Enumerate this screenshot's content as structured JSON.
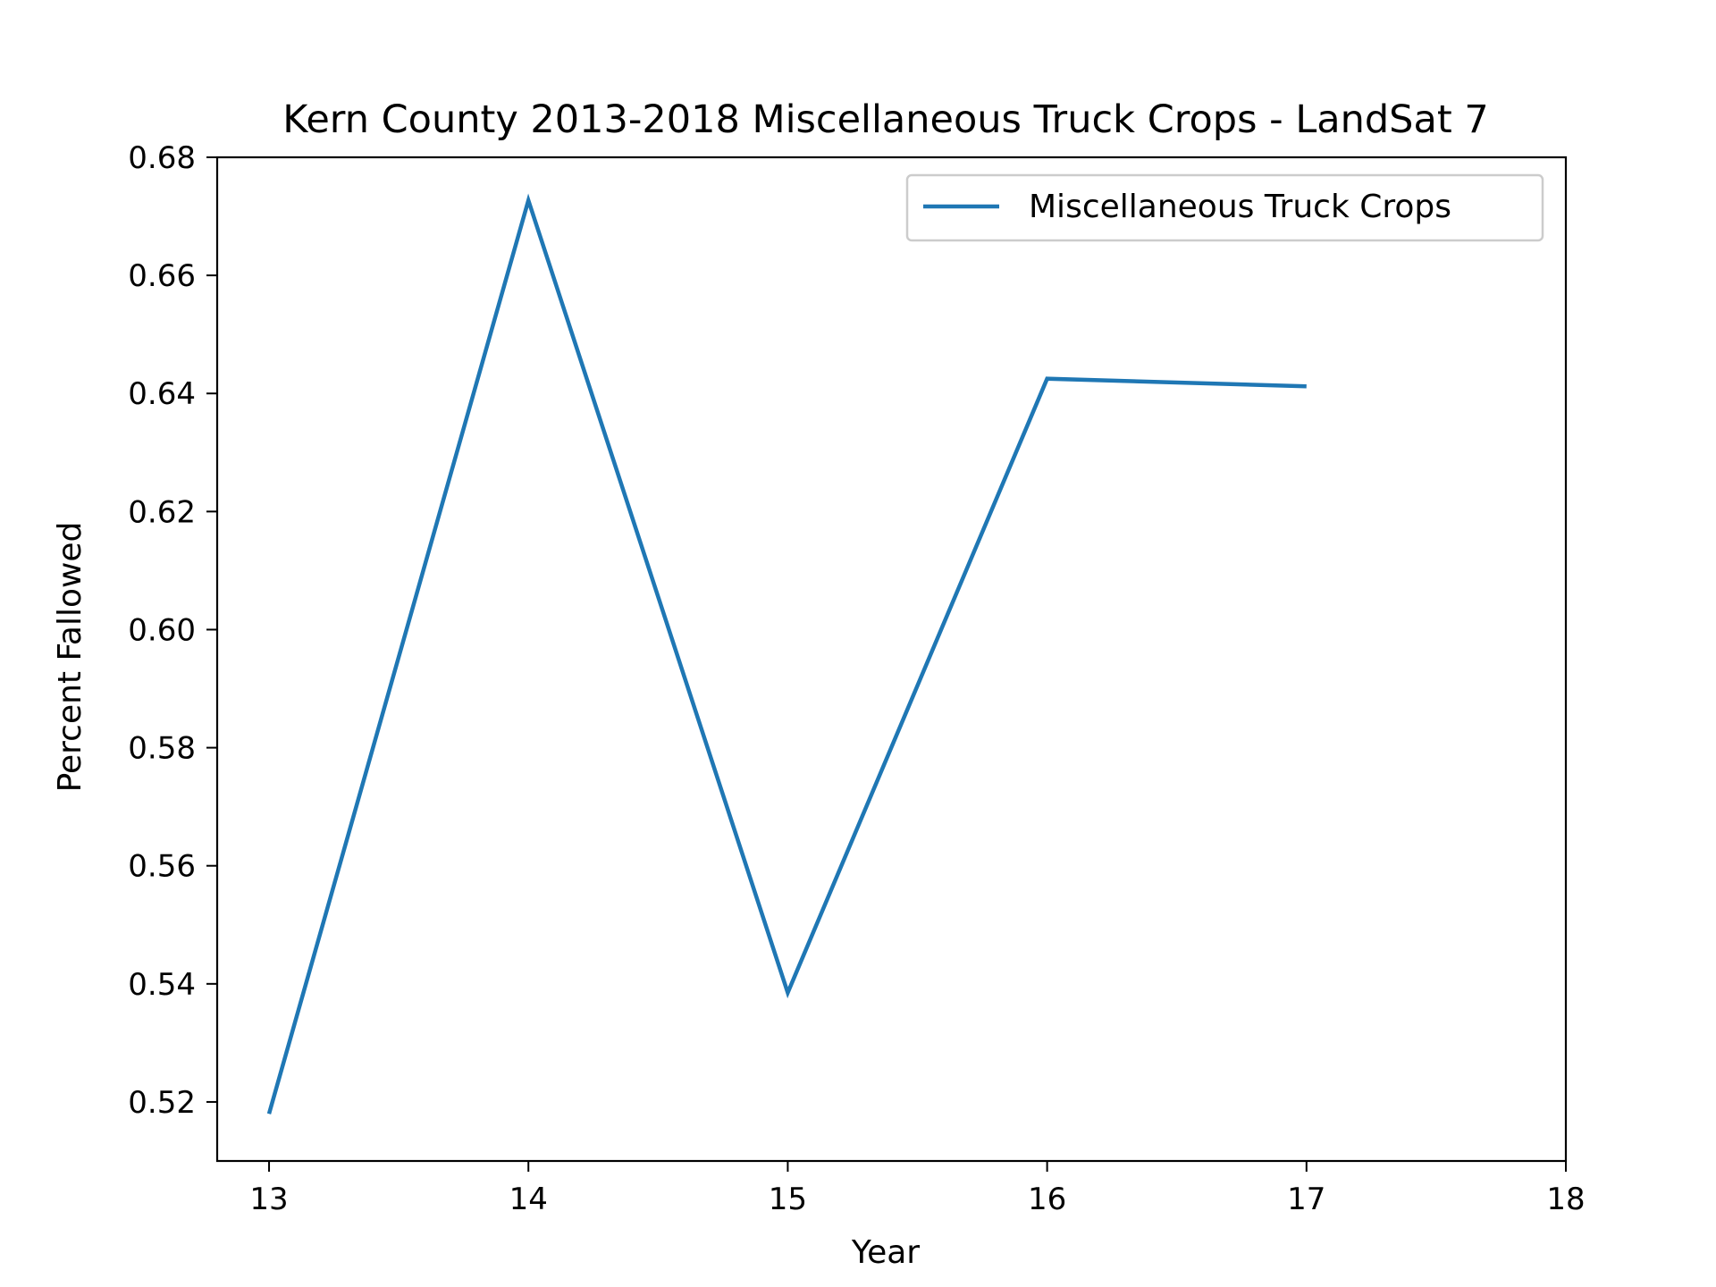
{
  "chart_data": {
    "type": "line",
    "title": "Kern County 2013-2018 Miscellaneous Truck Crops - LandSat 7",
    "xlabel": "Year",
    "ylabel": "Percent Fallowed",
    "xlim": [
      12.8,
      18
    ],
    "ylim": [
      0.51,
      0.68
    ],
    "xticks": [
      "13",
      "14",
      "15",
      "16",
      "17",
      "18"
    ],
    "yticks": [
      "0.52",
      "0.54",
      "0.56",
      "0.58",
      "0.60",
      "0.62",
      "0.64",
      "0.66",
      "0.68"
    ],
    "legend_position": "top-right",
    "grid": false,
    "series": [
      {
        "name": "Miscellaneous Truck Crops",
        "color": "#1f77b4",
        "x": [
          13,
          14,
          15,
          16,
          17
        ],
        "y": [
          0.518,
          0.6727,
          0.5385,
          0.6425,
          0.6412
        ]
      }
    ]
  }
}
